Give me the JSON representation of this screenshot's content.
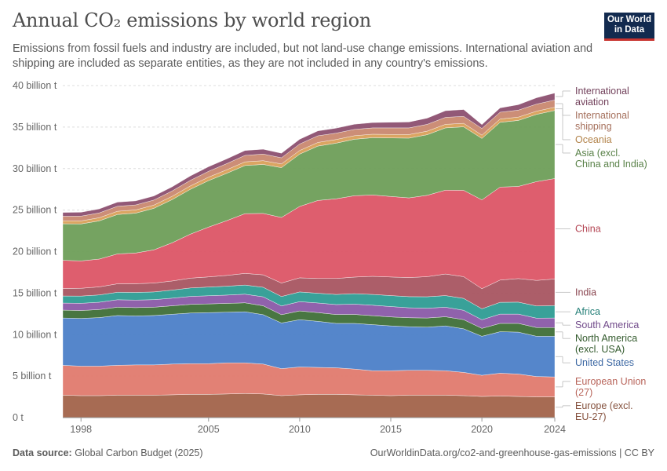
{
  "header": {
    "title": "Annual CO₂ emissions by world region",
    "subtitle": "Emissions from fossil fuels and industry are included, but not land-use change emissions. International aviation and shipping are included as separate entities, as they are not included in any country's emissions."
  },
  "logo": {
    "line1": "Our World",
    "line2": "in Data",
    "bg_color": "#122a4f",
    "accent_color": "#c8332f"
  },
  "footer": {
    "source_label": "Data source:",
    "source_text": "Global Carbon Budget (2025)",
    "url": "OurWorldinData.org/co2-and-greenhouse-gas-emissions | CC BY"
  },
  "chart_data": {
    "type": "area",
    "stacked": true,
    "x": [
      1997,
      1998,
      1999,
      2000,
      2001,
      2002,
      2003,
      2004,
      2005,
      2006,
      2007,
      2008,
      2009,
      2010,
      2011,
      2012,
      2013,
      2014,
      2015,
      2016,
      2017,
      2018,
      2019,
      2020,
      2021,
      2022,
      2023,
      2024
    ],
    "x_ticks": [
      {
        "value": 1998,
        "label": "1998"
      },
      {
        "value": 2005,
        "label": "2005"
      },
      {
        "value": 2010,
        "label": "2010"
      },
      {
        "value": 2015,
        "label": "2015"
      },
      {
        "value": 2020,
        "label": "2020"
      },
      {
        "value": 2024,
        "label": "2024"
      }
    ],
    "y_ticks": [
      {
        "value": 0,
        "label": "0 t"
      },
      {
        "value": 5,
        "label": "5 billion t"
      },
      {
        "value": 10,
        "label": "10 billion t"
      },
      {
        "value": 15,
        "label": "15 billion t"
      },
      {
        "value": 20,
        "label": "20 billion t"
      },
      {
        "value": 25,
        "label": "25 billion t"
      },
      {
        "value": 30,
        "label": "30 billion t"
      },
      {
        "value": 35,
        "label": "35 billion t"
      },
      {
        "value": 40,
        "label": "40 billion t"
      }
    ],
    "ylim": [
      0,
      40
    ],
    "xlim": [
      1997,
      2024
    ],
    "grid": true,
    "legend_position": "right",
    "series": [
      {
        "name": "Europe (excl. EU-27)",
        "color": "#a2634a",
        "values": [
          2.7,
          2.65,
          2.65,
          2.7,
          2.7,
          2.7,
          2.75,
          2.8,
          2.8,
          2.85,
          2.9,
          2.85,
          2.65,
          2.75,
          2.8,
          2.8,
          2.75,
          2.7,
          2.65,
          2.7,
          2.7,
          2.7,
          2.65,
          2.55,
          2.6,
          2.55,
          2.5,
          2.5
        ]
      },
      {
        "name": "European Union (27)",
        "color": "#e07a6e",
        "values": [
          3.6,
          3.55,
          3.55,
          3.6,
          3.65,
          3.65,
          3.7,
          3.7,
          3.7,
          3.75,
          3.7,
          3.6,
          3.25,
          3.35,
          3.25,
          3.2,
          3.1,
          2.95,
          3.0,
          3.0,
          3.0,
          2.95,
          2.8,
          2.55,
          2.75,
          2.7,
          2.45,
          2.4
        ]
      },
      {
        "name": "United States",
        "color": "#4c80c8",
        "values": [
          5.7,
          5.75,
          5.85,
          6.0,
          5.9,
          5.95,
          6.0,
          6.1,
          6.15,
          6.1,
          6.15,
          5.95,
          5.5,
          5.7,
          5.55,
          5.35,
          5.5,
          5.55,
          5.4,
          5.25,
          5.2,
          5.4,
          5.25,
          4.7,
          5.0,
          5.05,
          4.85,
          4.9
        ]
      },
      {
        "name": "North America (excl. USA)",
        "color": "#3f6f38",
        "values": [
          0.95,
          0.95,
          0.97,
          1.0,
          1.0,
          1.0,
          1.02,
          1.04,
          1.05,
          1.06,
          1.08,
          1.07,
          1.0,
          1.05,
          1.05,
          1.07,
          1.08,
          1.08,
          1.08,
          1.08,
          1.1,
          1.1,
          1.1,
          0.95,
          1.0,
          1.05,
          1.05,
          1.05
        ]
      },
      {
        "name": "South America",
        "color": "#8a5aa8",
        "values": [
          0.85,
          0.87,
          0.88,
          0.9,
          0.91,
          0.91,
          0.92,
          0.96,
          0.98,
          1.0,
          1.04,
          1.08,
          1.05,
          1.12,
          1.16,
          1.2,
          1.24,
          1.26,
          1.25,
          1.2,
          1.18,
          1.15,
          1.13,
          1.04,
          1.12,
          1.12,
          1.13,
          1.15
        ]
      },
      {
        "name": "Africa",
        "color": "#2e9c94",
        "values": [
          0.85,
          0.87,
          0.88,
          0.9,
          0.92,
          0.93,
          0.97,
          1.02,
          1.05,
          1.07,
          1.1,
          1.15,
          1.14,
          1.17,
          1.17,
          1.22,
          1.26,
          1.3,
          1.32,
          1.34,
          1.38,
          1.4,
          1.43,
          1.32,
          1.42,
          1.44,
          1.47,
          1.5
        ]
      },
      {
        "name": "India",
        "color": "#a85561",
        "values": [
          0.9,
          0.94,
          0.97,
          1.02,
          1.05,
          1.07,
          1.1,
          1.18,
          1.22,
          1.3,
          1.4,
          1.5,
          1.62,
          1.7,
          1.78,
          1.92,
          2.0,
          2.18,
          2.24,
          2.3,
          2.42,
          2.6,
          2.62,
          2.42,
          2.68,
          2.84,
          3.08,
          3.2
        ]
      },
      {
        "name": "China",
        "color": "#dc5566",
        "values": [
          3.4,
          3.3,
          3.35,
          3.6,
          3.7,
          4.0,
          4.6,
          5.3,
          6.0,
          6.6,
          7.2,
          7.4,
          7.9,
          8.6,
          9.4,
          9.6,
          9.8,
          9.8,
          9.7,
          9.6,
          9.8,
          10.1,
          10.4,
          10.7,
          11.2,
          11.1,
          11.9,
          12.1
        ]
      },
      {
        "name": "Asia (excl. China and India)",
        "color": "#6e9e59",
        "values": [
          4.4,
          4.45,
          4.6,
          4.75,
          4.8,
          5.0,
          5.2,
          5.4,
          5.6,
          5.7,
          5.8,
          5.9,
          6.0,
          6.3,
          6.55,
          6.7,
          6.8,
          6.9,
          7.05,
          7.2,
          7.3,
          7.5,
          7.65,
          7.4,
          7.8,
          7.95,
          8.1,
          8.2
        ]
      },
      {
        "name": "Oceania",
        "color": "#d9a05a",
        "values": [
          0.36,
          0.37,
          0.38,
          0.39,
          0.39,
          0.39,
          0.4,
          0.41,
          0.42,
          0.43,
          0.44,
          0.45,
          0.45,
          0.44,
          0.44,
          0.44,
          0.43,
          0.42,
          0.42,
          0.43,
          0.43,
          0.43,
          0.42,
          0.4,
          0.4,
          0.4,
          0.39,
          0.39
        ]
      },
      {
        "name": "International shipping",
        "color": "#c98870",
        "values": [
          0.55,
          0.57,
          0.58,
          0.6,
          0.6,
          0.61,
          0.64,
          0.67,
          0.7,
          0.74,
          0.78,
          0.8,
          0.74,
          0.78,
          0.8,
          0.77,
          0.76,
          0.76,
          0.79,
          0.8,
          0.82,
          0.84,
          0.84,
          0.8,
          0.82,
          0.84,
          0.85,
          0.87
        ]
      },
      {
        "name": "International aviation",
        "color": "#8c5070",
        "values": [
          0.46,
          0.47,
          0.48,
          0.5,
          0.49,
          0.49,
          0.5,
          0.53,
          0.56,
          0.57,
          0.59,
          0.58,
          0.55,
          0.57,
          0.59,
          0.6,
          0.62,
          0.64,
          0.68,
          0.71,
          0.75,
          0.8,
          0.82,
          0.47,
          0.52,
          0.66,
          0.76,
          0.84
        ]
      }
    ]
  }
}
